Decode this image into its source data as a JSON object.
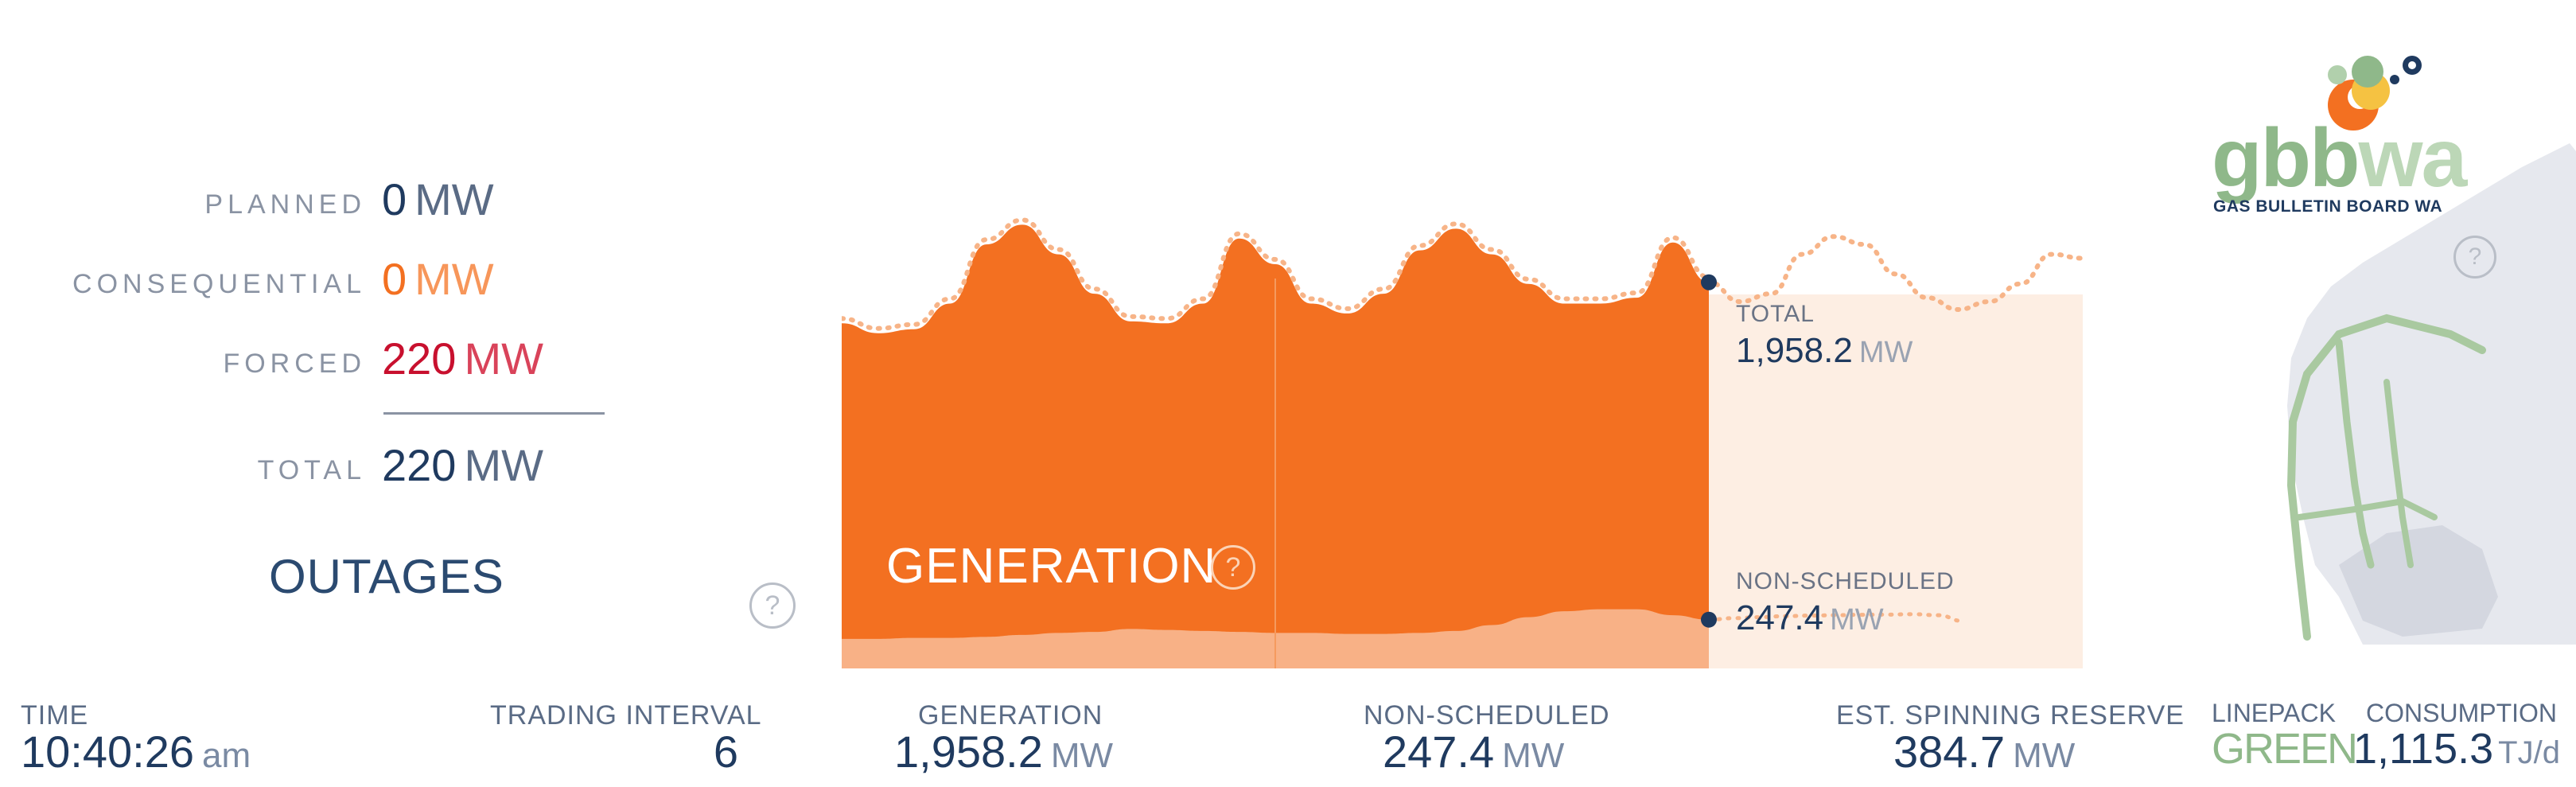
{
  "outages": {
    "title": "OUTAGES",
    "rows": [
      {
        "label": "PLANNED",
        "value": "0",
        "unit": "MW"
      },
      {
        "label": "CONSEQUENTIAL",
        "value": "0",
        "unit": "MW"
      },
      {
        "label": "FORCED",
        "value": "220",
        "unit": "MW"
      },
      {
        "label": "TOTAL",
        "value": "220",
        "unit": "MW"
      }
    ],
    "help": "?"
  },
  "generation_chart": {
    "title": "GENERATION",
    "help": "?",
    "total_label": "TOTAL",
    "total_value": "1,958.2",
    "total_unit": "MW",
    "nonsched_label": "NON-SCHEDULED",
    "nonsched_value": "247.4",
    "nonsched_unit": "MW",
    "colors": {
      "generation": "#f37021",
      "forecast_bg": "#fdeee3",
      "nonsched": "#f8b186",
      "marker": "#1f3a5f"
    }
  },
  "chart_data": {
    "type": "area",
    "series": [
      {
        "name": "TOTAL",
        "values": [
          1750,
          1700,
          1720,
          1850,
          2150,
          2250,
          2100,
          1900,
          1760,
          1750,
          1850,
          2180,
          2050,
          1850,
          1800,
          1900,
          2120,
          2230,
          2100,
          1950,
          1850,
          1850,
          1880,
          2160,
          1958.2
        ]
      },
      {
        "name": "NON-SCHEDULED",
        "values": [
          150,
          150,
          155,
          155,
          160,
          170,
          180,
          185,
          200,
          195,
          190,
          185,
          180,
          180,
          175,
          175,
          180,
          190,
          220,
          260,
          290,
          300,
          300,
          270,
          247.4
        ]
      }
    ],
    "forecast_total": [
      1958.2,
      1860,
      1900,
      2100,
      2190,
      2150,
      2000,
      1880,
      1820,
      1860,
      1950,
      2100,
      2080
    ],
    "forecast_nonsched": [
      247.4,
      255,
      260,
      265,
      268,
      270,
      272,
      273,
      275,
      270,
      240
    ]
  },
  "stats": {
    "time": {
      "label": "TIME",
      "value": "10:40:26",
      "suffix": "am"
    },
    "trading_interval": {
      "label": "TRADING INTERVAL",
      "value": "6"
    },
    "generation": {
      "label": "GENERATION",
      "value": "1,958.2",
      "unit": "MW"
    },
    "non_scheduled": {
      "label": "NON-SCHEDULED",
      "value": "247.4",
      "unit": "MW"
    },
    "spinning_reserve": {
      "label": "EST. SPINNING RESERVE",
      "value": "384.7",
      "unit": "MW"
    }
  },
  "gbbwa": {
    "logo_main": "gbb",
    "logo_accent": "wa",
    "subtitle": "GAS BULLETIN BOARD WA",
    "help": "?",
    "linepack_label": "LINEPACK",
    "linepack_value": "GREEN",
    "consumption_label": "CONSUMPTION",
    "consumption_value": "1,115.3",
    "consumption_unit": "TJ/d",
    "colors": {
      "green": "#8fb88a",
      "map": "#e6e8ee",
      "pipeline": "#a9c9a0"
    }
  }
}
